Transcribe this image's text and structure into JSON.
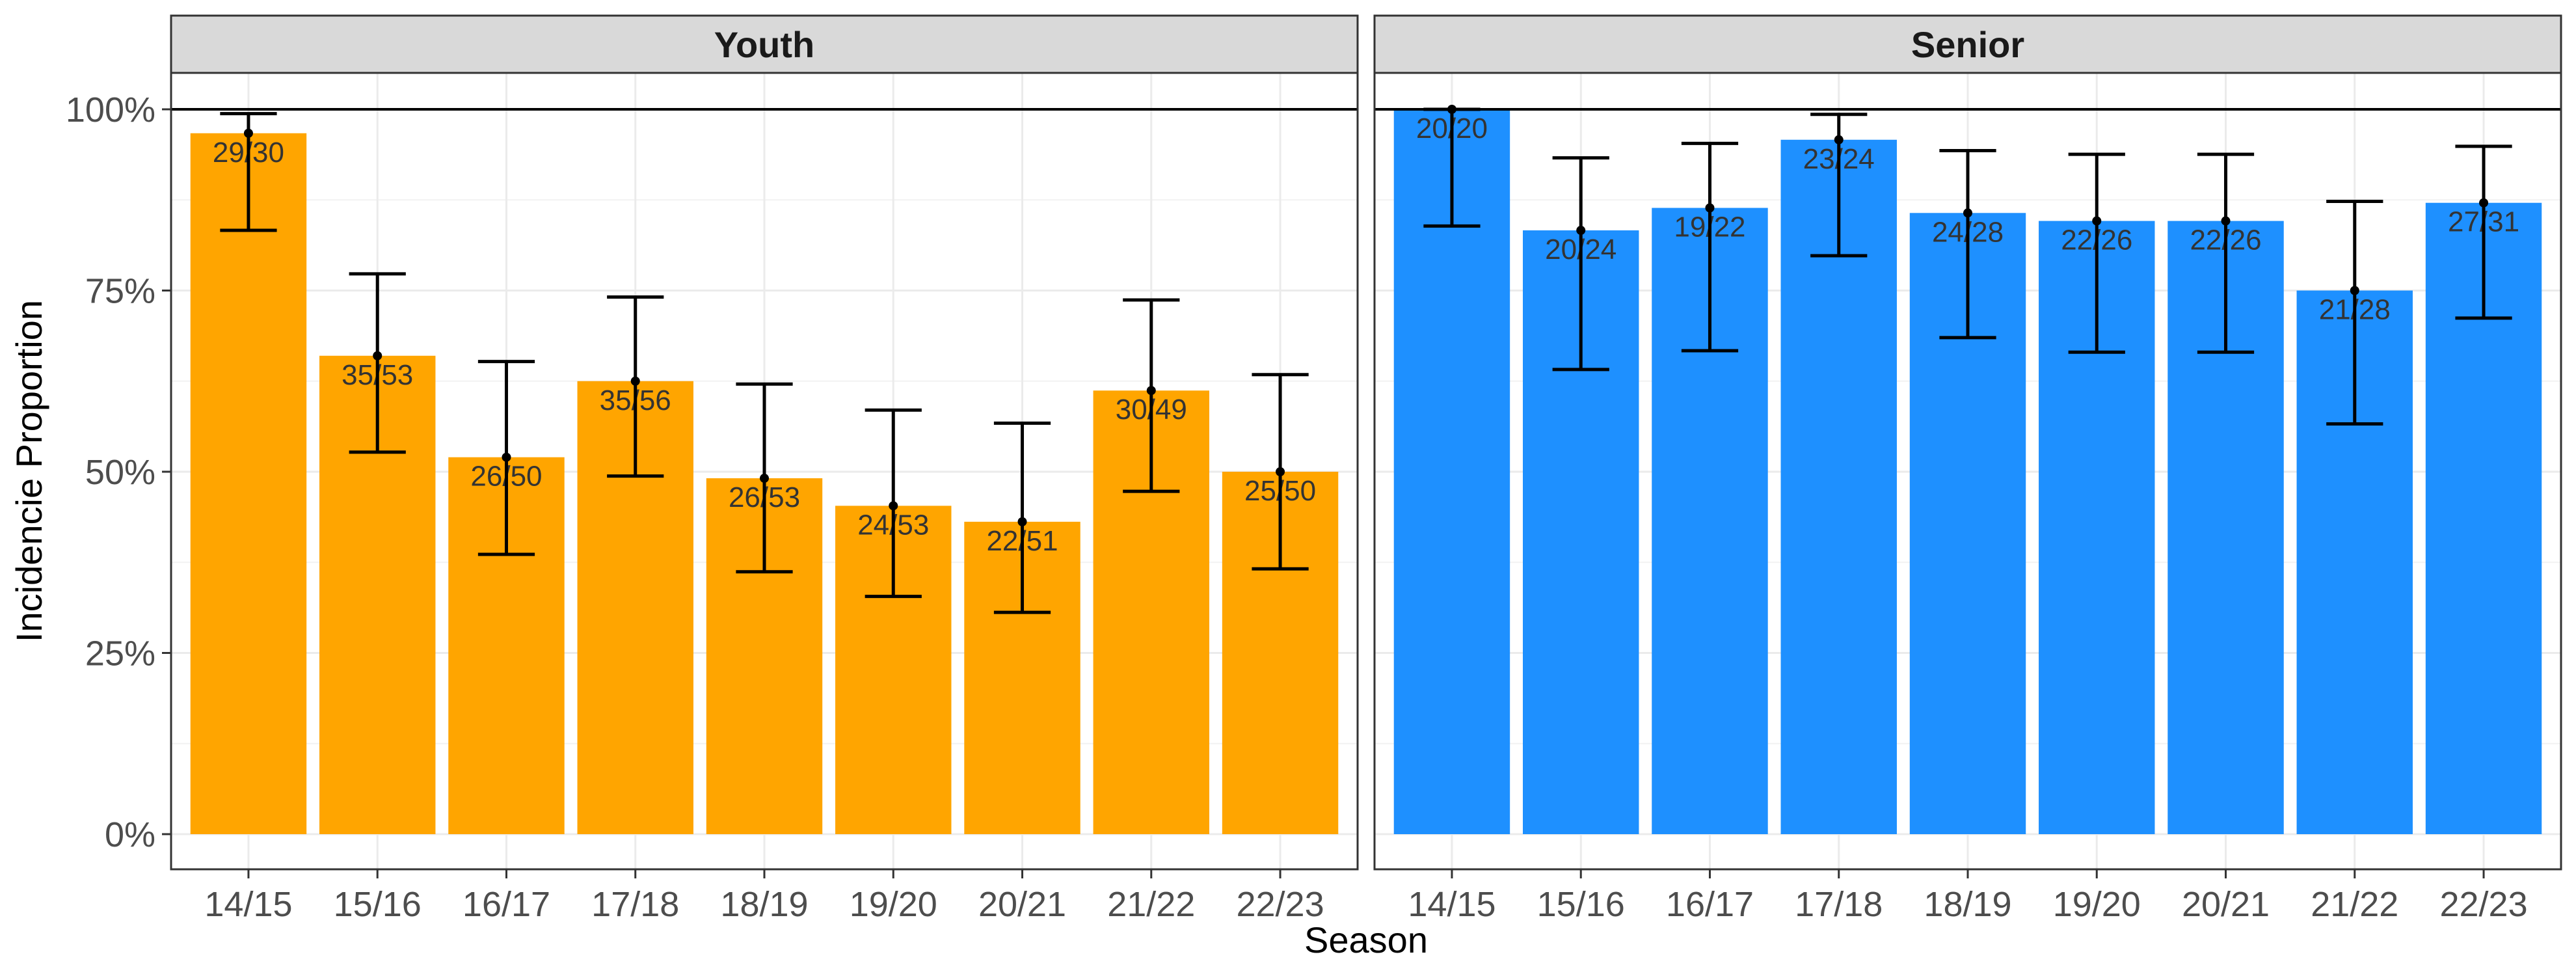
{
  "chart_data": {
    "type": "bar",
    "xlabel": "Season",
    "ylabel": "Incidencie Proportion",
    "ylim": [
      0,
      1.0
    ],
    "yticks": [
      0,
      0.25,
      0.5,
      0.75,
      1.0
    ],
    "ytick_labels": [
      "0%",
      "25%",
      "50%",
      "75%",
      "100%"
    ],
    "reference_line": 1.0,
    "grid": true,
    "categories": [
      "14/15",
      "15/16",
      "16/17",
      "17/18",
      "18/19",
      "19/20",
      "20/21",
      "21/22",
      "22/23"
    ],
    "panels": [
      {
        "name": "Youth",
        "color": "#FFA500",
        "values": [
          0.967,
          0.66,
          0.52,
          0.625,
          0.491,
          0.453,
          0.431,
          0.612,
          0.5
        ],
        "ci_low": [
          0.833,
          0.527,
          0.386,
          0.494,
          0.362,
          0.328,
          0.306,
          0.473,
          0.366
        ],
        "ci_high": [
          0.994,
          0.773,
          0.652,
          0.741,
          0.621,
          0.585,
          0.567,
          0.737,
          0.634
        ],
        "labels": [
          "29/30",
          "35/53",
          "26/50",
          "35/56",
          "26/53",
          "24/53",
          "22/51",
          "30/49",
          "25/50"
        ]
      },
      {
        "name": "Senior",
        "color": "#1E90FF",
        "values": [
          1.0,
          0.833,
          0.864,
          0.958,
          0.857,
          0.846,
          0.846,
          0.75,
          0.871
        ],
        "ci_low": [
          0.839,
          0.641,
          0.667,
          0.798,
          0.685,
          0.665,
          0.665,
          0.566,
          0.712
        ],
        "ci_high": [
          1.0,
          0.933,
          0.953,
          0.993,
          0.943,
          0.938,
          0.938,
          0.873,
          0.949
        ],
        "labels": [
          "20/20",
          "20/24",
          "19/22",
          "23/24",
          "24/28",
          "22/26",
          "22/26",
          "21/28",
          "27/31"
        ]
      }
    ]
  }
}
